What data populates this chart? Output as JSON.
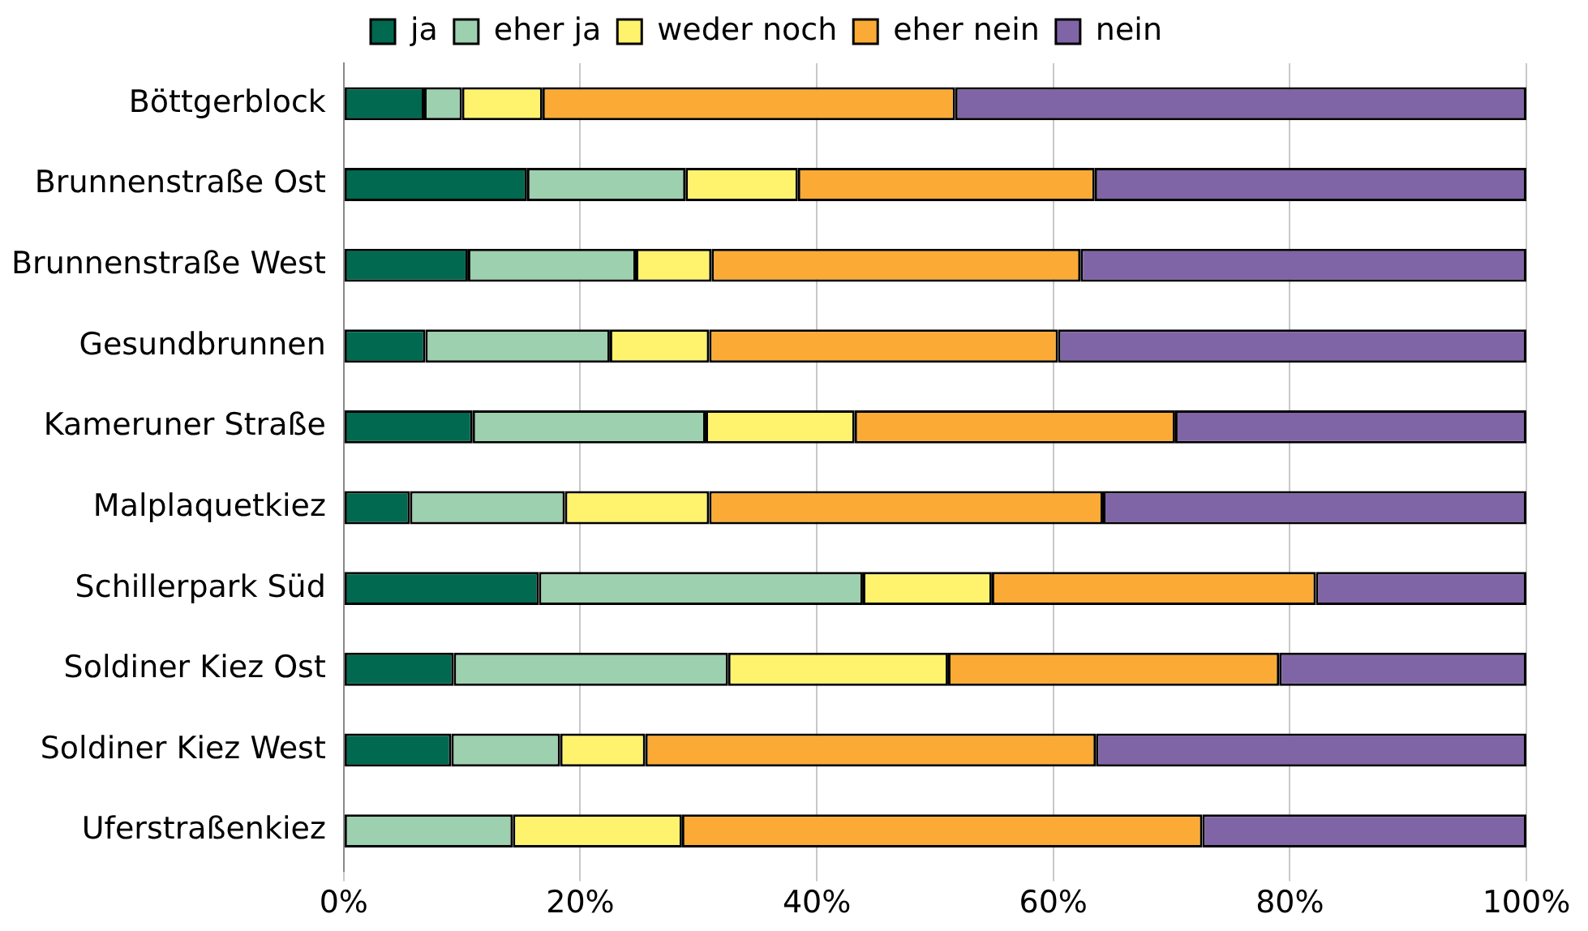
{
  "chart_data": {
    "type": "bar",
    "orientation": "horizontal",
    "stacked": true,
    "legend": "top",
    "grid": "x",
    "categories": [
      "Böttgerblock",
      "Brunnenstraße Ost",
      "Brunnenstraße West",
      "Gesundbrunnen",
      "Kameruner Straße",
      "Malplaquetkiez",
      "Schillerpark Süd",
      "Soldiner Kiez Ost",
      "Soldiner Kiez West",
      "Uferstraßenkiez"
    ],
    "xlim": [
      0,
      100
    ],
    "xticks": [
      {
        "value": 0,
        "label": "0%"
      },
      {
        "value": 20,
        "label": "20%"
      },
      {
        "value": 40,
        "label": "40%"
      },
      {
        "value": 60,
        "label": "60%"
      },
      {
        "value": 80,
        "label": "80%"
      },
      {
        "value": 100,
        "label": "100%"
      }
    ],
    "series": [
      {
        "name": "ja",
        "color": "#00694f",
        "values": [
          6.8,
          15.5,
          10.5,
          6.9,
          10.9,
          5.6,
          16.5,
          9.3,
          9.1,
          0
        ]
      },
      {
        "name": "eher ja",
        "color": "#9dd0ae",
        "values": [
          3.2,
          13.4,
          14.2,
          15.6,
          19.7,
          13.1,
          27.4,
          23.2,
          9.2,
          14.3
        ]
      },
      {
        "name": "weder noch",
        "color": "#fff36e",
        "values": [
          6.8,
          9.5,
          6.4,
          8.4,
          12.6,
          12.2,
          10.9,
          18.6,
          7.2,
          14.3
        ]
      },
      {
        "name": "eher nein",
        "color": "#fbab35",
        "values": [
          34.9,
          25.1,
          31.2,
          29.5,
          27.1,
          33.3,
          27.4,
          28.0,
          38.1,
          44.0
        ]
      },
      {
        "name": "nein",
        "color": "#8065a6",
        "values": [
          48.3,
          36.5,
          37.7,
          39.6,
          29.7,
          35.8,
          17.8,
          20.9,
          36.4,
          27.4
        ]
      }
    ]
  }
}
